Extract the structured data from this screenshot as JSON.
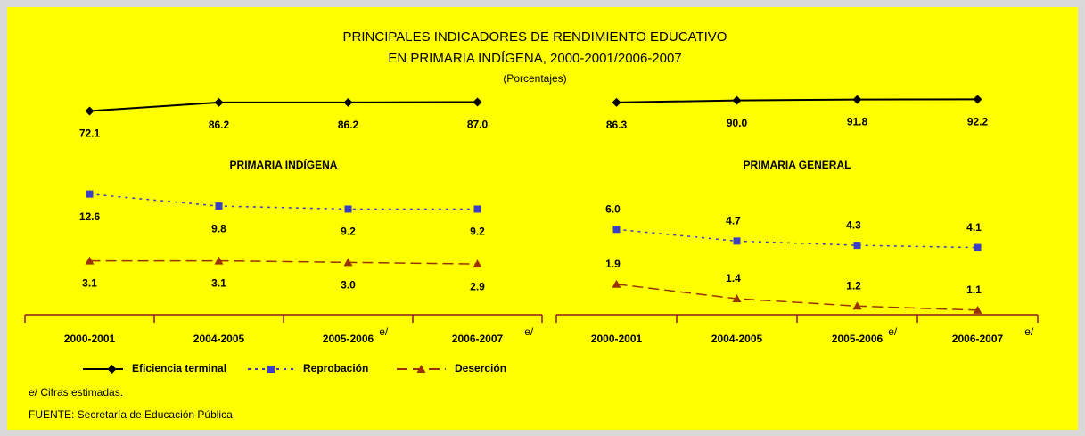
{
  "title": [
    "PRINCIPALES INDICADORES DE RENDIMIENTO EDUCATIVO",
    "EN PRIMARIA INDÍGENA, 2000-2001/2006-2007"
  ],
  "subtitle": "(Porcentajes)",
  "notes": [
    "e/ Cifras estimadas.",
    "FUENTE: Secretaría de Educación Pública."
  ],
  "chart_data": [
    {
      "type": "line",
      "title": "PRIMARIA INDÍGENA",
      "categories": [
        "2000-2001",
        "2004-2005",
        "2005-2006",
        "2006-2007"
      ],
      "category_notes": [
        null,
        null,
        "e/",
        "e/"
      ],
      "ylim": [
        1,
        100
      ],
      "ylog": true,
      "series": [
        {
          "name": "Eficiencia terminal",
          "color": "#000000",
          "marker": "diamond",
          "dash": "solid",
          "values": [
            72.1,
            86.2,
            86.2,
            87.0
          ],
          "value_labels": [
            "72.1",
            "86.2",
            "86.2",
            "87.0"
          ]
        },
        {
          "name": "Reprobación",
          "color": "#3a3fc4",
          "marker": "square",
          "dash": "dotted",
          "values": [
            12.6,
            9.8,
            9.2,
            9.2
          ],
          "value_labels": [
            "12.6",
            "9.8",
            "9.2",
            "9.2"
          ]
        },
        {
          "name": "Deserción",
          "color": "#993300",
          "marker": "triangle",
          "dash": "dashed",
          "values": [
            3.1,
            3.1,
            3.0,
            2.9
          ],
          "value_labels": [
            "3.1",
            "3.1",
            "3.0",
            "2.9"
          ]
        }
      ]
    },
    {
      "type": "line",
      "title": "PRIMARIA GENERAL",
      "categories": [
        "2000-2001",
        "2004-2005",
        "2005-2006",
        "2006-2007"
      ],
      "category_notes": [
        null,
        null,
        "e/",
        "e/"
      ],
      "ylim": [
        1,
        100
      ],
      "ylog": true,
      "series": [
        {
          "name": "Eficiencia terminal",
          "color": "#000000",
          "marker": "diamond",
          "dash": "solid",
          "values": [
            86.3,
            90.0,
            91.8,
            92.2
          ],
          "value_labels": [
            "86.3",
            "90.0",
            "91.8",
            "92.2"
          ]
        },
        {
          "name": "Reprobación",
          "color": "#3a3fc4",
          "marker": "square",
          "dash": "dotted",
          "values": [
            6.0,
            4.7,
            4.3,
            4.1
          ],
          "value_labels": [
            "6.0",
            "4.7",
            "4.3",
            "4.1"
          ]
        },
        {
          "name": "Deserción",
          "color": "#993300",
          "marker": "triangle",
          "dash": "dashed",
          "values": [
            1.9,
            1.4,
            1.2,
            1.1
          ],
          "value_labels": [
            "1.9",
            "1.4",
            "1.2",
            "1.1"
          ]
        }
      ]
    }
  ]
}
